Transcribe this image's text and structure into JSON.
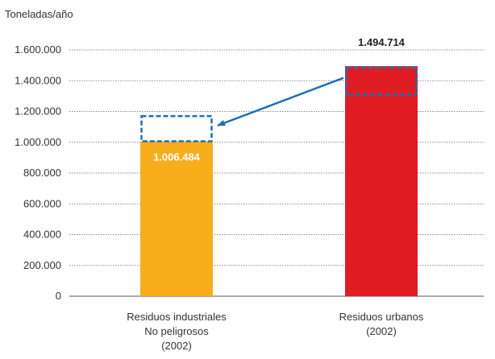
{
  "chart_data": {
    "type": "bar",
    "ylabel": "Toneladas/año",
    "ylim": [
      0,
      1600000
    ],
    "ticks": [
      {
        "value": 0,
        "label": "0"
      },
      {
        "value": 200000,
        "label": "200.000"
      },
      {
        "value": 400000,
        "label": "400.000"
      },
      {
        "value": 600000,
        "label": "600.000"
      },
      {
        "value": 800000,
        "label": "800.000"
      },
      {
        "value": 1000000,
        "label": "1.000.000"
      },
      {
        "value": 1200000,
        "label": "1.200.000"
      },
      {
        "value": 1400000,
        "label": "1.400.000"
      },
      {
        "value": 1600000,
        "label": "1.600.000"
      }
    ],
    "grid": true,
    "categories": [
      [
        "Residuos industriales",
        "No peligrosos",
        "(2002)"
      ],
      [
        "Residuos urbanos",
        "(2002)"
      ]
    ],
    "values": [
      1006484,
      1494714
    ],
    "value_labels": [
      "1.006.484",
      "1.494.714"
    ],
    "colors": [
      "#f7ad1c",
      "#e01c24"
    ],
    "annotation": {
      "type": "dashed-box-arrow",
      "color": "#1f6fb5",
      "source_range": [
        1310000,
        1494714
      ],
      "target_range": [
        1006484,
        1170000
      ]
    }
  }
}
